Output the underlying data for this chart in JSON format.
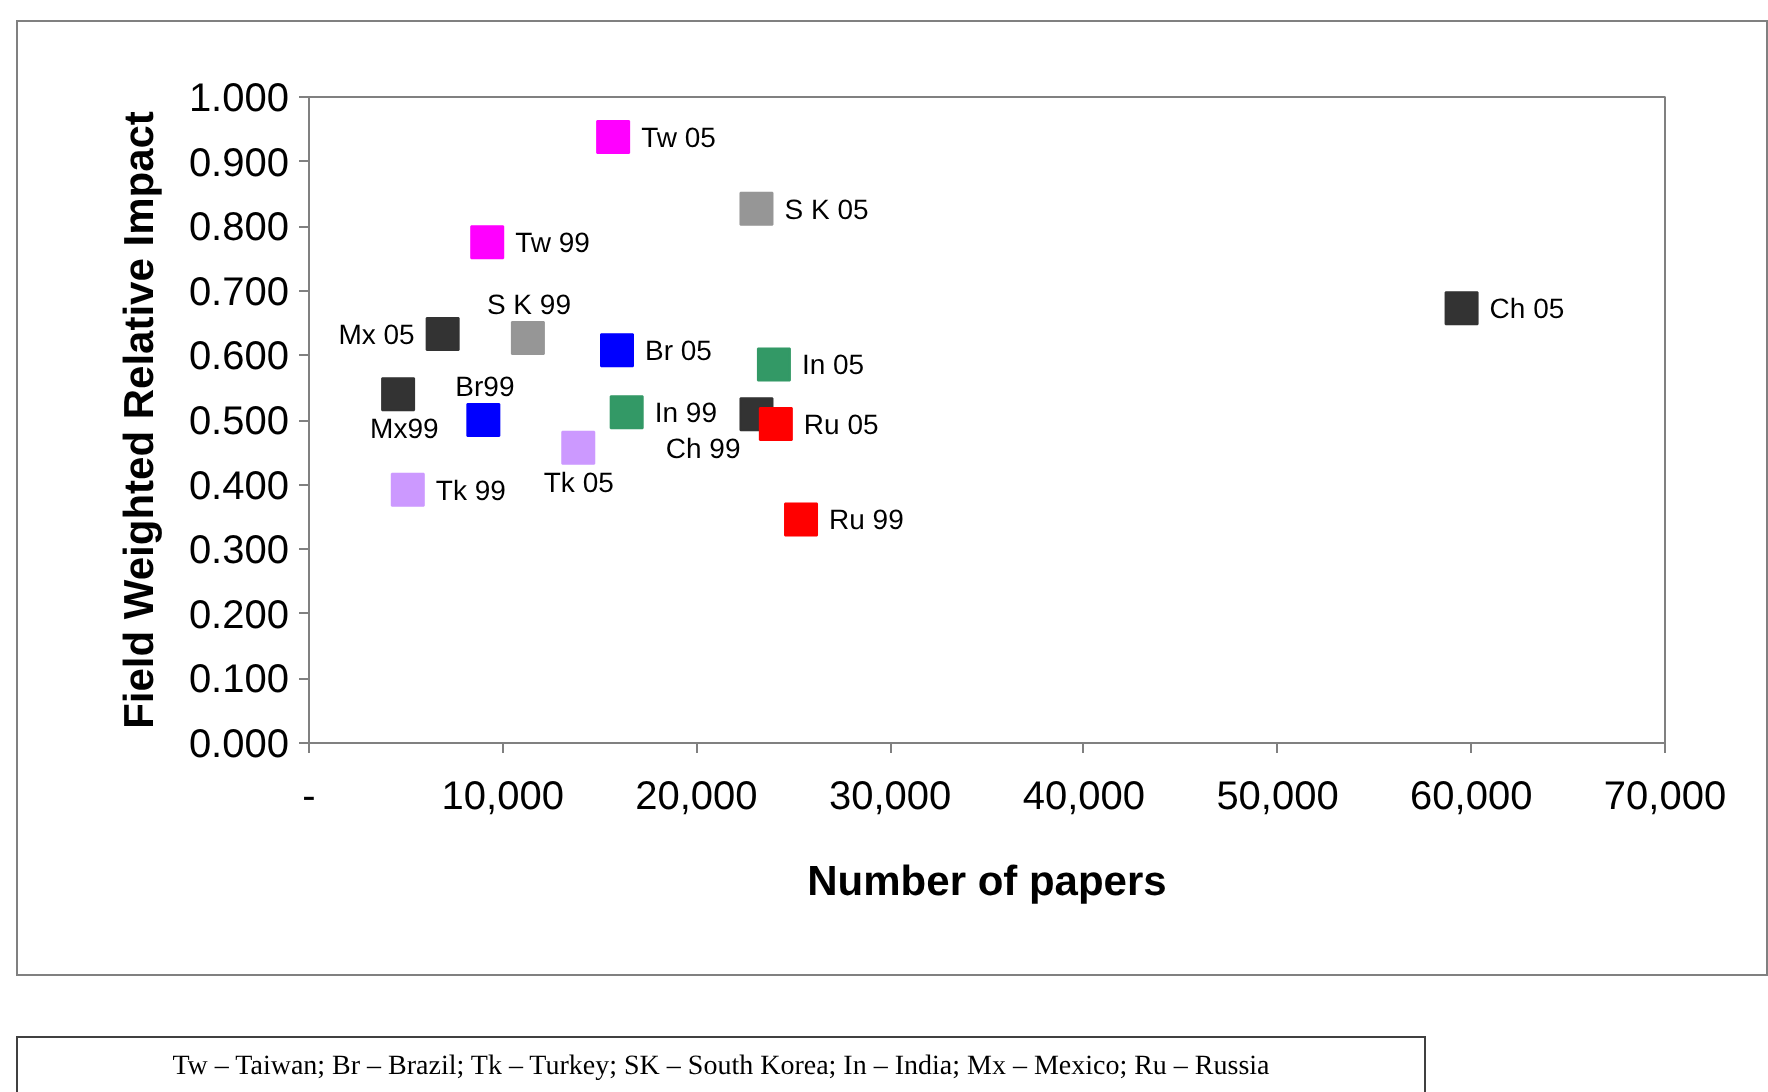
{
  "chart_data": {
    "type": "scatter",
    "xlabel": "Number of papers",
    "ylabel": "Field Weighted Relative Impact",
    "xlim": [
      0,
      70000
    ],
    "xticks": [
      {
        "value": 0,
        "label": "-"
      },
      {
        "value": 10000,
        "label": "10,000"
      },
      {
        "value": 20000,
        "label": "20,000"
      },
      {
        "value": 30000,
        "label": "30,000"
      },
      {
        "value": 40000,
        "label": "40,000"
      },
      {
        "value": 50000,
        "label": "50,000"
      },
      {
        "value": 60000,
        "label": "60,000"
      },
      {
        "value": 70000,
        "label": "70,000"
      }
    ],
    "ylim": [
      0,
      1
    ],
    "yticks": [
      {
        "value": 0,
        "label": "0.000"
      },
      {
        "value": 0.1,
        "label": "0.100"
      },
      {
        "value": 0.2,
        "label": "0.200"
      },
      {
        "value": 0.3,
        "label": "0.300"
      },
      {
        "value": 0.4,
        "label": "0.400"
      },
      {
        "value": 0.5,
        "label": "0.500"
      },
      {
        "value": 0.6,
        "label": "0.600"
      },
      {
        "value": 0.7,
        "label": "0.700"
      },
      {
        "value": 0.8,
        "label": "0.800"
      },
      {
        "value": 0.9,
        "label": "0.900"
      },
      {
        "value": 1,
        "label": "1.000"
      }
    ],
    "grid": false,
    "marker": "square",
    "series": [
      {
        "name": "Tw 05",
        "color": "#ff00ff",
        "x": [
          15700
        ],
        "values": [
          0.938
        ]
      },
      {
        "name": "S K 05",
        "color": "#969696",
        "x": [
          23100
        ],
        "values": [
          0.827
        ]
      },
      {
        "name": "Tw 99",
        "color": "#ff00ff",
        "x": [
          9200
        ],
        "values": [
          0.775
        ]
      },
      {
        "name": "Mx 05",
        "color": "#333333",
        "x": [
          6900
        ],
        "values": [
          0.633
        ]
      },
      {
        "name": "S K 99",
        "color": "#969696",
        "x": [
          11300
        ],
        "values": [
          0.627
        ]
      },
      {
        "name": "Br 05",
        "color": "#0000ff",
        "x": [
          15900
        ],
        "values": [
          0.608
        ]
      },
      {
        "name": "In 05",
        "color": "#339966",
        "x": [
          24000
        ],
        "values": [
          0.586
        ]
      },
      {
        "name": "Ch 05",
        "color": "#333333",
        "x": [
          59500
        ],
        "values": [
          0.673
        ]
      },
      {
        "name": "Mx99",
        "color": "#333333",
        "x": [
          4600
        ],
        "values": [
          0.54
        ]
      },
      {
        "name": "Br99",
        "color": "#0000ff",
        "x": [
          9000
        ],
        "values": [
          0.5
        ]
      },
      {
        "name": "In 99",
        "color": "#339966",
        "x": [
          16400
        ],
        "values": [
          0.512
        ]
      },
      {
        "name": "Ch 99",
        "color": "#333333",
        "x": [
          23100
        ],
        "values": [
          0.509
        ]
      },
      {
        "name": "Ru 05",
        "color": "#ff0000",
        "x": [
          24100
        ],
        "values": [
          0.494
        ]
      },
      {
        "name": "Tk 05",
        "color": "#cc99ff",
        "x": [
          13900
        ],
        "values": [
          0.457
        ]
      },
      {
        "name": "Tk 99",
        "color": "#cc99ff",
        "x": [
          5100
        ],
        "values": [
          0.392
        ]
      },
      {
        "name": "Ru 99",
        "color": "#ff0000",
        "x": [
          25400
        ],
        "values": [
          0.346
        ]
      }
    ],
    "annotations": [
      "Tw – Taiwan; Br – Brazil; Tk – Turkey; SK – South Korea; In – India; Mx – Mexico; Ru – Russia"
    ]
  }
}
